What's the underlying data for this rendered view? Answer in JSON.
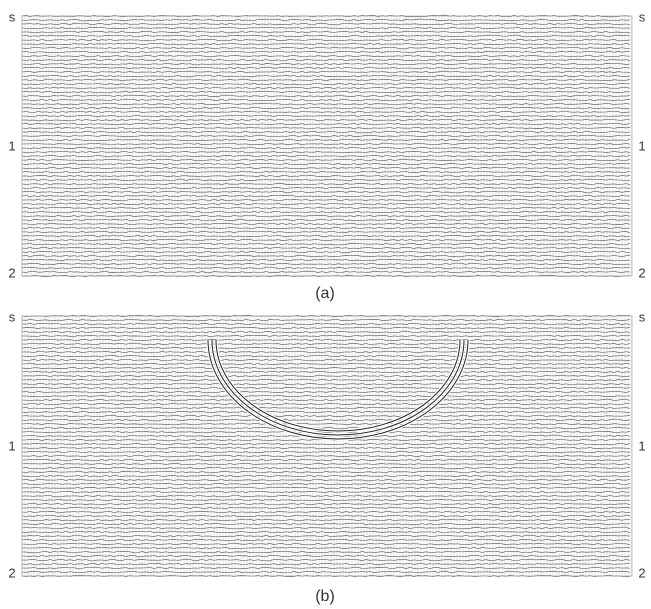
{
  "panels": [
    {
      "left_labels": [
        "s",
        "1",
        "2"
      ],
      "right_labels": [
        "s",
        "1",
        "2"
      ],
      "caption": "(a)"
    },
    {
      "left_labels": [
        "s",
        "1",
        "2"
      ],
      "right_labels": [
        "s",
        "1",
        "2"
      ],
      "caption": "(b)"
    }
  ]
}
